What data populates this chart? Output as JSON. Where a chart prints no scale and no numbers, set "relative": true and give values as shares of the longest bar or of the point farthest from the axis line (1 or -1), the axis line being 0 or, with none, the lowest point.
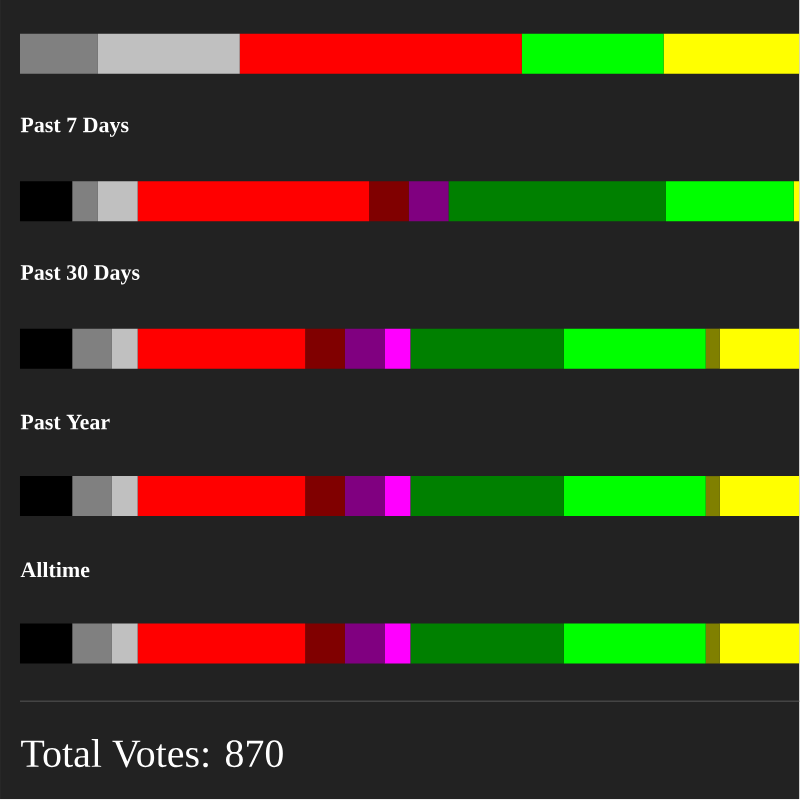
{
  "chart_data": {
    "type": "bar",
    "orientation": "horizontal",
    "stacked": true,
    "relative": true,
    "categories": [
      null,
      "Past 7 Days",
      "Past 30 Days",
      "Past Year",
      "Alltime"
    ],
    "series": [
      {
        "color": "#000000",
        "values": [
          null,
          0.067,
          0.067,
          0.067,
          0.067
        ]
      },
      {
        "color": "#808080",
        "values": [
          0.1,
          0.033,
          0.051,
          0.051,
          0.051
        ]
      },
      {
        "color": "#c0c0c0",
        "values": [
          0.182,
          0.051,
          0.033,
          0.033,
          0.033
        ]
      },
      {
        "color": "#ff0000",
        "values": [
          0.362,
          0.297,
          0.215,
          0.215,
          0.215
        ]
      },
      {
        "color": "#800000",
        "values": [
          null,
          0.051,
          0.051,
          0.051,
          0.051
        ]
      },
      {
        "color": "#800080",
        "values": [
          null,
          0.051,
          0.051,
          0.051,
          0.051
        ]
      },
      {
        "color": "#ff00ff",
        "values": [
          null,
          null,
          0.033,
          0.033,
          0.033
        ]
      },
      {
        "color": "#008000",
        "values": [
          null,
          0.279,
          0.197,
          0.197,
          0.197
        ]
      },
      {
        "color": "#00ff00",
        "values": [
          0.182,
          0.164,
          0.182,
          0.182,
          0.182
        ]
      },
      {
        "color": "#808000",
        "values": [
          null,
          null,
          0.018,
          0.018,
          0.018
        ]
      },
      {
        "color": "#ffff00",
        "values": [
          0.174,
          0.007,
          0.102,
          0.102,
          0.102
        ]
      }
    ],
    "annotations": [
      "Total Votes: 870"
    ]
  }
}
